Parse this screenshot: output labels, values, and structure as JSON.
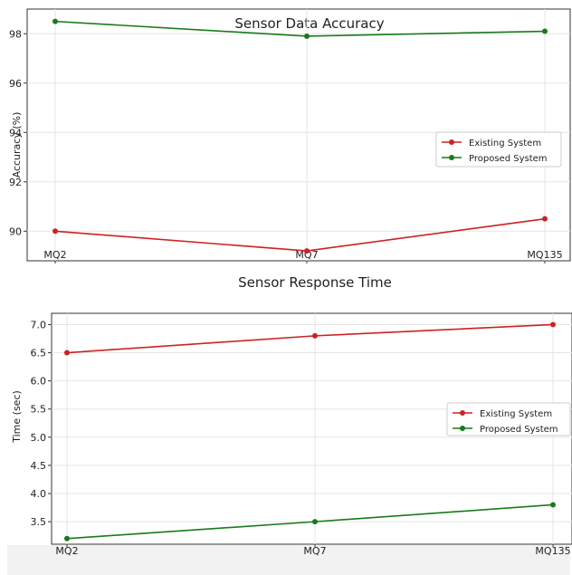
{
  "chart_data": [
    {
      "type": "line",
      "title": "Sensor Data Accuracy",
      "xlabel": "",
      "ylabel": "Accuracy (%)",
      "categories": [
        "MQ2",
        "MQ7",
        "MQ135"
      ],
      "ylim": [
        88.8,
        99.0
      ],
      "yticks": [
        90,
        92,
        94,
        96,
        98
      ],
      "grid": true,
      "legend_position": "center-right",
      "series": [
        {
          "name": "Existing System",
          "color": "#cc2222",
          "values": [
            90.0,
            89.2,
            90.5
          ]
        },
        {
          "name": "Proposed System",
          "color": "#1a7a1a",
          "values": [
            98.5,
            97.9,
            98.1
          ]
        }
      ]
    },
    {
      "type": "line",
      "title": "Sensor Response Time",
      "xlabel": "",
      "ylabel": "Time (sec)",
      "categories": [
        "MQ2",
        "MQ7",
        "MQ135"
      ],
      "ylim": [
        3.1,
        7.2
      ],
      "yticks": [
        3.5,
        4.0,
        4.5,
        5.0,
        5.5,
        6.0,
        6.5,
        7.0
      ],
      "ytick_labels": [
        "3.5",
        "4.0",
        "4.5",
        "5.0",
        "5.5",
        "6.0",
        "6.5",
        "7.0"
      ],
      "grid": true,
      "legend_position": "center-right",
      "series": [
        {
          "name": "Existing System",
          "color": "#cc2222",
          "values": [
            6.5,
            6.8,
            7.0
          ]
        },
        {
          "name": "Proposed System",
          "color": "#1a7a1a",
          "values": [
            3.2,
            3.5,
            3.8
          ]
        }
      ]
    }
  ]
}
